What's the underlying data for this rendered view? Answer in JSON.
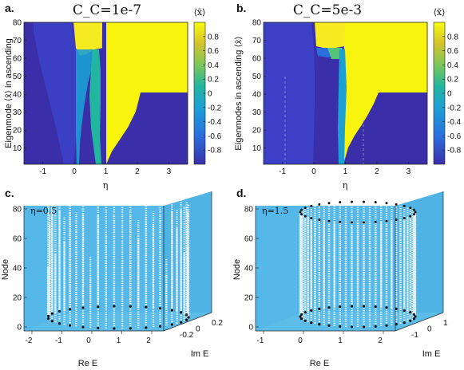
{
  "chart_data": [
    {
      "panel": "a.",
      "type": "heatmap",
      "title": "C_C=1e-7",
      "xlabel": "η",
      "ylabel": "Eigenmode ⟨x̄⟩ in ascending",
      "xlim": [
        -1.6,
        3.6
      ],
      "ylim": [
        1,
        80
      ],
      "x_ticks": [
        "-1",
        "0",
        "1",
        "2",
        "3"
      ],
      "y_ticks": [
        "10",
        "20",
        "30",
        "40",
        "50",
        "60",
        "70",
        "80"
      ],
      "colorbar": {
        "label": "⟨x̄⟩",
        "range": [
          -1,
          1
        ],
        "ticks": [
          "0.8",
          "0.6",
          "0.4",
          "0.2",
          "0",
          "-0.2",
          "-0.4",
          "-0.6",
          "-0.8"
        ],
        "low_color": "#3a2fa8",
        "mid_color": "#22a3a0",
        "high_color": "#f9fb0e"
      },
      "regions": [
        {
          "eta_range": [
            -1.6,
            0
          ],
          "modes": [
            1,
            80
          ],
          "mean_x": -0.85
        },
        {
          "eta_range": [
            0,
            0.8
          ],
          "modes": [
            74,
            80
          ],
          "mean_x": 0.9
        },
        {
          "eta_range": [
            1.0,
            1.8
          ],
          "modes": [
            40,
            80
          ],
          "mean_x": 0.95
        },
        {
          "eta_range": [
            1.8,
            3.6
          ],
          "modes": [
            40,
            80
          ],
          "mean_x": 0.95
        },
        {
          "eta_range": [
            1.8,
            3.6
          ],
          "modes": [
            1,
            40
          ],
          "mean_x": -0.85
        }
      ]
    },
    {
      "panel": "b.",
      "type": "heatmap",
      "title": "C_C=5e-3",
      "xlabel": "η",
      "ylabel": "Eigenmodes in ascending ⟨x̄⟩",
      "xlim": [
        -1.6,
        3.6
      ],
      "ylim": [
        1,
        80
      ],
      "x_ticks": [
        "-1",
        "0",
        "1",
        "2",
        "3"
      ],
      "y_ticks": [
        "10",
        "20",
        "30",
        "40",
        "50",
        "60",
        "70",
        "80"
      ],
      "colorbar": {
        "label": "⟨x̄⟩",
        "range": [
          -1,
          1
        ],
        "ticks": [
          "0.8",
          "0.6",
          "0.4",
          "0.2",
          "0",
          "-0.2",
          "-0.4",
          "-0.6",
          "-0.8"
        ]
      },
      "dashed_lines_eta": [
        0.5,
        1.5
      ],
      "regions": [
        {
          "eta_range": [
            0.1,
            0.9
          ],
          "modes": [
            67,
            80
          ],
          "mean_x": 0.9
        },
        {
          "eta_range": [
            1.0,
            3.6
          ],
          "modes": [
            40,
            80
          ],
          "mean_x": 0.95
        },
        {
          "eta_range": [
            1.8,
            3.6
          ],
          "modes": [
            1,
            40
          ],
          "mean_x": -0.85
        }
      ]
    },
    {
      "panel": "c.",
      "type": "scatter",
      "annotation": "η=0.5",
      "xlabel": "Re E",
      "ylabel": "Im E",
      "zlabel": "Node",
      "x_ticks": [
        "-2",
        "-1",
        "0",
        "1",
        "2"
      ],
      "y_ticks": [
        "-0.2",
        "0",
        "0.2"
      ],
      "z_ticks": [
        "0",
        "20",
        "40",
        "60",
        "80"
      ],
      "background": "#55b8e8"
    },
    {
      "panel": "d.",
      "type": "scatter",
      "annotation": "η=1.5",
      "xlabel": "Re E",
      "ylabel": "Im E",
      "zlabel": "Node",
      "x_ticks": [
        "-1",
        "0",
        "1",
        "2"
      ],
      "y_ticks": [
        "-1",
        "0",
        "1"
      ],
      "z_ticks": [
        "0",
        "20",
        "40",
        "60",
        "80"
      ],
      "background": "#55b8e8"
    }
  ]
}
